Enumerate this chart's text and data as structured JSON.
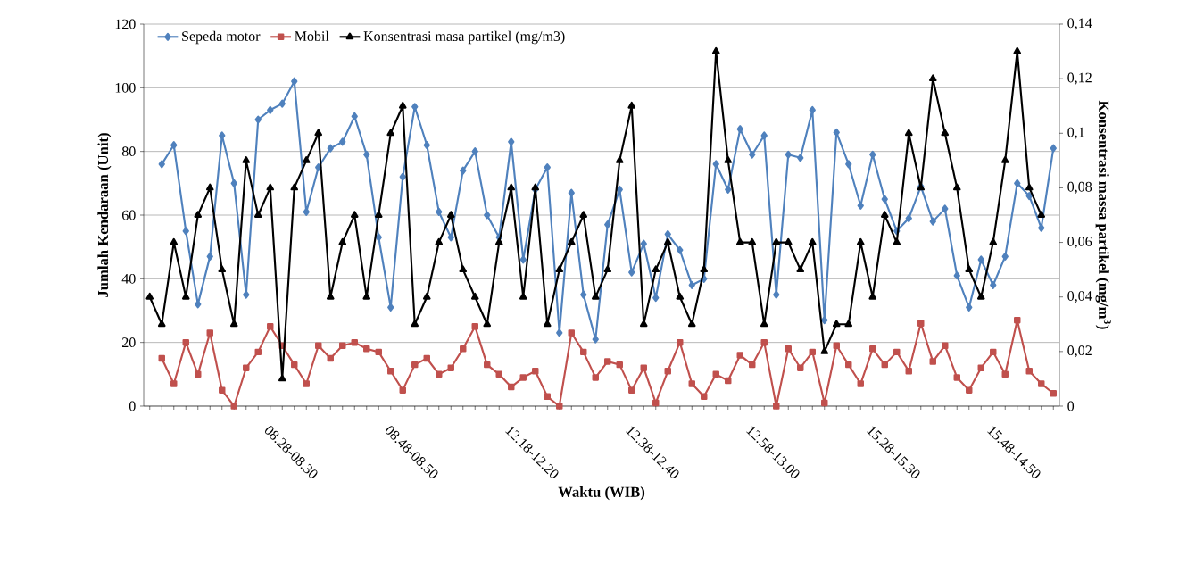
{
  "chart_data": {
    "type": "line",
    "xlabel": "Waktu (WIB)",
    "ylabel": "Jumlah Kendaraan (Unit)",
    "y2label": "Konsentrasi massa partikel (mg/m$^{3}$)",
    "categories": [
      null,
      null,
      null,
      null,
      null,
      null,
      null,
      null,
      null,
      null,
      "08.28-08.30",
      null,
      null,
      null,
      null,
      null,
      null,
      null,
      null,
      null,
      "08.48-08.50",
      null,
      null,
      null,
      null,
      null,
      null,
      null,
      null,
      null,
      "12.18-12.20",
      null,
      null,
      null,
      null,
      null,
      null,
      null,
      null,
      null,
      "12.38-12.40",
      null,
      null,
      null,
      null,
      null,
      null,
      null,
      null,
      null,
      "12.58-13.00",
      null,
      null,
      null,
      null,
      null,
      null,
      null,
      null,
      null,
      "15.28-15.30",
      null,
      null,
      null,
      null,
      null,
      null,
      null,
      null,
      null,
      "15.48-14.50",
      null,
      null,
      null,
      null,
      null
    ],
    "series": [
      {
        "name": "Sepeda motor",
        "color": "#4f81bd",
        "marker": "diamond",
        "values": [
          null,
          76,
          82,
          55,
          32,
          47,
          85,
          70,
          35,
          90,
          93,
          95,
          102,
          61,
          75,
          81,
          83,
          91,
          79,
          53,
          31,
          72,
          94,
          82,
          61,
          53,
          74,
          80,
          60,
          53,
          83,
          46,
          68,
          75,
          23,
          67,
          35,
          21,
          57,
          68,
          42,
          51,
          34,
          54,
          49,
          38,
          40,
          76,
          68,
          87,
          79,
          85,
          35,
          79,
          78,
          93,
          27,
          86,
          76,
          63,
          79,
          65,
          55,
          59,
          69,
          58,
          62,
          41,
          31,
          46,
          38,
          47,
          70,
          66,
          56,
          81
        ]
      },
      {
        "name": "Mobil",
        "color": "#c0504d",
        "marker": "square",
        "values": [
          null,
          15,
          7,
          20,
          10,
          23,
          5,
          0,
          12,
          17,
          25,
          19,
          13,
          7,
          19,
          15,
          19,
          20,
          18,
          17,
          11,
          5,
          13,
          15,
          10,
          12,
          18,
          25,
          13,
          10,
          6,
          9,
          11,
          3,
          0,
          23,
          17,
          9,
          14,
          13,
          5,
          12,
          1,
          11,
          20,
          7,
          3,
          10,
          8,
          16,
          13,
          20,
          0,
          18,
          12,
          17,
          1,
          19,
          13,
          7,
          18,
          13,
          17,
          11,
          26,
          14,
          19,
          9,
          5,
          12,
          17,
          10,
          27,
          11,
          7,
          4
        ]
      },
      {
        "name": "Konsentrasi masa partikel (mg/m3)",
        "color": "#000000",
        "marker": "triangle",
        "axis": "y2",
        "values": [
          0.04,
          0.03,
          0.06,
          0.04,
          0.07,
          0.08,
          0.05,
          0.03,
          0.09,
          0.07,
          0.08,
          0.01,
          0.08,
          0.09,
          0.1,
          0.04,
          0.06,
          0.07,
          0.04,
          0.07,
          0.1,
          0.11,
          0.03,
          0.04,
          0.06,
          0.07,
          0.05,
          0.04,
          0.03,
          0.06,
          0.08,
          0.04,
          0.08,
          0.03,
          0.05,
          0.06,
          0.07,
          0.04,
          0.05,
          0.09,
          0.11,
          0.03,
          0.05,
          0.06,
          0.04,
          0.03,
          0.05,
          0.13,
          0.09,
          0.06,
          0.06,
          0.03,
          0.06,
          0.06,
          0.05,
          0.06,
          0.02,
          0.03,
          0.03,
          0.06,
          0.04,
          0.07,
          0.06,
          0.1,
          0.08,
          0.12,
          0.1,
          0.08,
          0.05,
          0.04,
          0.06,
          0.09,
          0.13,
          0.08,
          0.07,
          null
        ]
      }
    ],
    "ylim": [
      0,
      120
    ],
    "yticks": [
      0,
      20,
      40,
      60,
      80,
      100,
      120
    ],
    "y2lim": [
      0,
      0.14
    ],
    "y2ticks": [
      0,
      {
        "value": 0.02,
        "label": "0,02"
      },
      {
        "value": 0.04,
        "label": "0,04"
      },
      {
        "value": 0.06,
        "label": "0,06"
      },
      {
        "value": 0.08,
        "label": "0,08"
      },
      {
        "value": 0.1,
        "label": "0,1"
      },
      {
        "value": 0.12,
        "label": "0,12"
      },
      {
        "value": 0.14,
        "label": "0,14"
      }
    ],
    "grid": "y",
    "legend": "top left"
  }
}
